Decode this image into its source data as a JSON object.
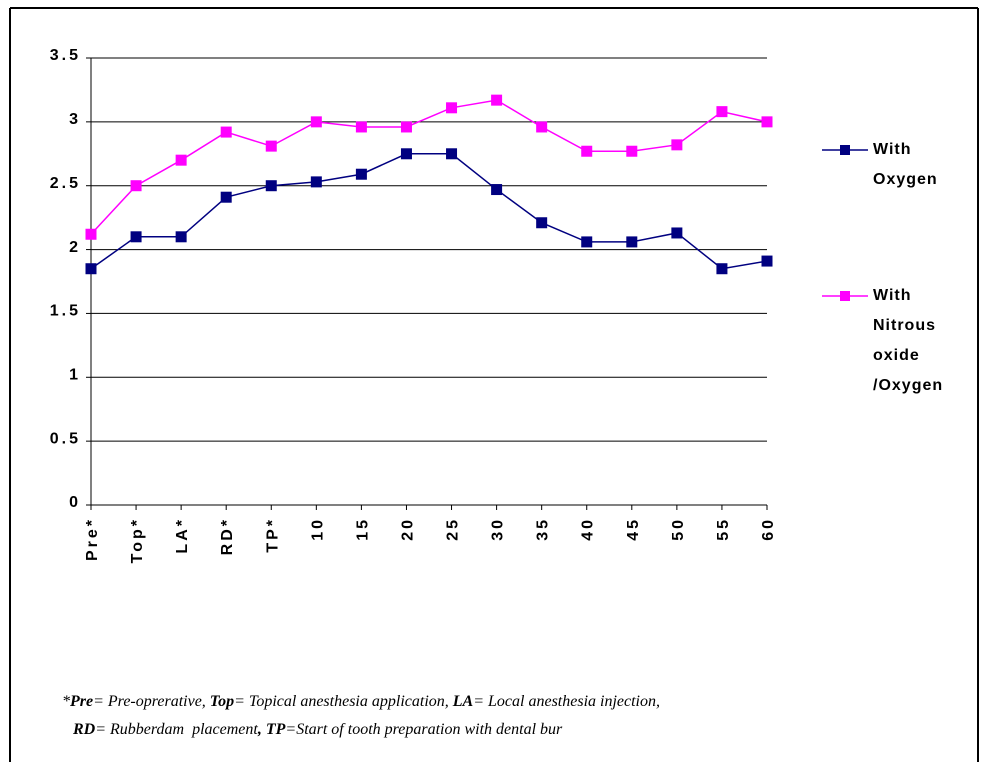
{
  "chart_data": {
    "type": "line",
    "categories": [
      "Pre*",
      "Top*",
      "LA*",
      "RD*",
      "TP*",
      "10",
      "15",
      "20",
      "25",
      "30",
      "35",
      "40",
      "45",
      "50",
      "55",
      "60"
    ],
    "series": [
      {
        "name": "With Oxygen",
        "color": "#000080",
        "values": [
          1.85,
          2.1,
          2.1,
          2.41,
          2.5,
          2.53,
          2.59,
          2.75,
          2.75,
          2.47,
          2.21,
          2.06,
          2.06,
          2.13,
          1.85,
          1.91
        ]
      },
      {
        "name": "With Nitrous oxide /Oxygen",
        "color": "#ff00ff",
        "values": [
          2.12,
          2.5,
          2.7,
          2.92,
          2.81,
          3.0,
          2.96,
          2.96,
          3.11,
          3.17,
          2.96,
          2.77,
          2.77,
          2.82,
          3.08,
          3.0
        ]
      }
    ],
    "ylim": [
      0,
      3.5
    ],
    "yticks": [
      0,
      0.5,
      1,
      1.5,
      2,
      2.5,
      3,
      3.5
    ],
    "grid": true,
    "legend": "right",
    "footnote_mark": "*",
    "footnote_lines": [
      [
        {
          "term": "Pre",
          "text": "= Pre-oprerative, "
        },
        {
          "term": "Top",
          "text": "= Topical anesthesia application, "
        },
        {
          "term": "LA",
          "text": "= Local anesthesia injection,"
        }
      ],
      [
        {
          "term": "RD",
          "text": "= Rubberdam  placement"
        },
        {
          "term": ", TP",
          "text": "=Start of tooth preparation with dental bur"
        }
      ]
    ]
  }
}
